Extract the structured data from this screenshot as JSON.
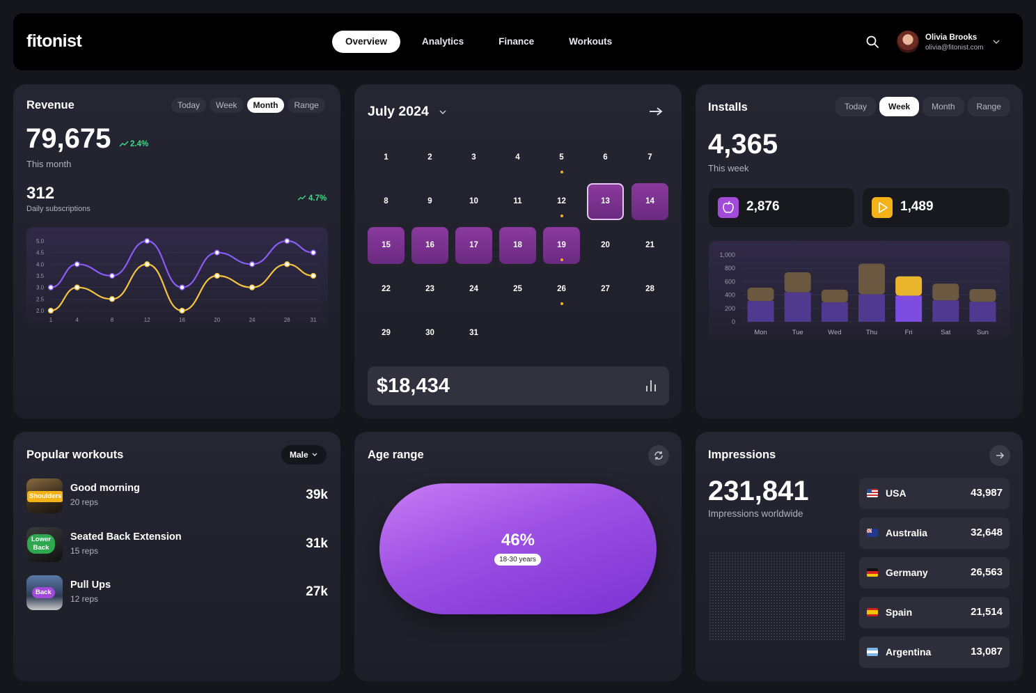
{
  "app": {
    "logo": "fitonist"
  },
  "nav": {
    "items": [
      {
        "label": "Overview",
        "active": true
      },
      {
        "label": "Analytics",
        "active": false
      },
      {
        "label": "Finance",
        "active": false
      },
      {
        "label": "Workouts",
        "active": false
      }
    ]
  },
  "user": {
    "name": "Olivia Brooks",
    "email": "olivia@fitonist.com"
  },
  "revenue": {
    "title": "Revenue",
    "ranges": [
      "Today",
      "Week",
      "Month",
      "Range"
    ],
    "active_range": "Month",
    "value": "79,675",
    "change": "2.4%",
    "period": "This month",
    "subs_value": "312",
    "subs_label": "Daily subscriptions",
    "subs_change": "4.7%"
  },
  "revenue_chart": {
    "y_ticks": [
      "5.0",
      "4.5",
      "4.0",
      "3.5",
      "3.0",
      "2.5",
      "2.0"
    ],
    "x_ticks": [
      "1",
      "4",
      "8",
      "12",
      "16",
      "20",
      "24",
      "28",
      "31"
    ]
  },
  "chart_data": [
    {
      "type": "line",
      "x": [
        1,
        4,
        8,
        12,
        16,
        20,
        24,
        28,
        31
      ],
      "series": [
        {
          "values": [
            3.0,
            4.0,
            3.5,
            5.0,
            3.0,
            4.5,
            4.0,
            5.0,
            4.5
          ],
          "color": "#8b5cf6"
        },
        {
          "values": [
            2.0,
            3.0,
            2.5,
            4.0,
            2.0,
            3.5,
            3.0,
            4.0,
            3.5
          ],
          "color": "#f5c542"
        }
      ],
      "ylim": [
        2.0,
        5.0
      ]
    },
    {
      "type": "bar",
      "categories": [
        "Mon",
        "Tue",
        "Wed",
        "Thu",
        "Fri",
        "Sat",
        "Sun"
      ],
      "series": [
        {
          "values": [
            310,
            440,
            290,
            410,
            390,
            320,
            300
          ],
          "color": "#4f3a8f"
        },
        {
          "values": [
            200,
            300,
            190,
            460,
            290,
            250,
            190
          ],
          "color": "#6b5840"
        }
      ],
      "highlight": "Fri",
      "ylim": [
        0,
        1000
      ],
      "y_ticks": [
        "1,000",
        "800",
        "600",
        "400",
        "200",
        "0"
      ]
    }
  ],
  "calendar": {
    "title": "July 2024",
    "days": [
      "1",
      "2",
      "3",
      "4",
      "5",
      "6",
      "7",
      "8",
      "9",
      "10",
      "11",
      "12",
      "13",
      "14",
      "15",
      "16",
      "17",
      "18",
      "19",
      "20",
      "21",
      "22",
      "23",
      "24",
      "25",
      "26",
      "27",
      "28",
      "29",
      "30",
      "31"
    ],
    "highlighted": [
      13,
      14,
      15,
      16,
      17,
      18,
      19
    ],
    "selected": 13,
    "dots": [
      5,
      12,
      19,
      26
    ],
    "total": "$18,434"
  },
  "installs": {
    "title": "Installs",
    "ranges": [
      "Today",
      "Week",
      "Month",
      "Range"
    ],
    "active_range": "Week",
    "value": "4,365",
    "period": "This week",
    "apple_value": "2,876",
    "play_value": "1,489"
  },
  "workouts": {
    "title": "Popular workouts",
    "filter": "Male",
    "items": [
      {
        "tag": "Shoulders",
        "name": "Good morning",
        "reps": "20 reps",
        "count": "39k"
      },
      {
        "tag": "Lower Back",
        "name": "Seated Back Extension",
        "reps": "15 reps",
        "count": "31k"
      },
      {
        "tag": "Back",
        "name": "Pull Ups",
        "reps": "12 reps",
        "count": "27k"
      }
    ]
  },
  "age": {
    "title": "Age range",
    "percent": "46%",
    "range": "18-30 years"
  },
  "impressions": {
    "title": "Impressions",
    "value": "231,841",
    "label": "Impressions worldwide",
    "countries": [
      {
        "name": "USA",
        "value": "43,987"
      },
      {
        "name": "Australia",
        "value": "32,648"
      },
      {
        "name": "Germany",
        "value": "26,563"
      },
      {
        "name": "Spain",
        "value": "21,514"
      },
      {
        "name": "Argentina",
        "value": "13,087"
      }
    ]
  }
}
